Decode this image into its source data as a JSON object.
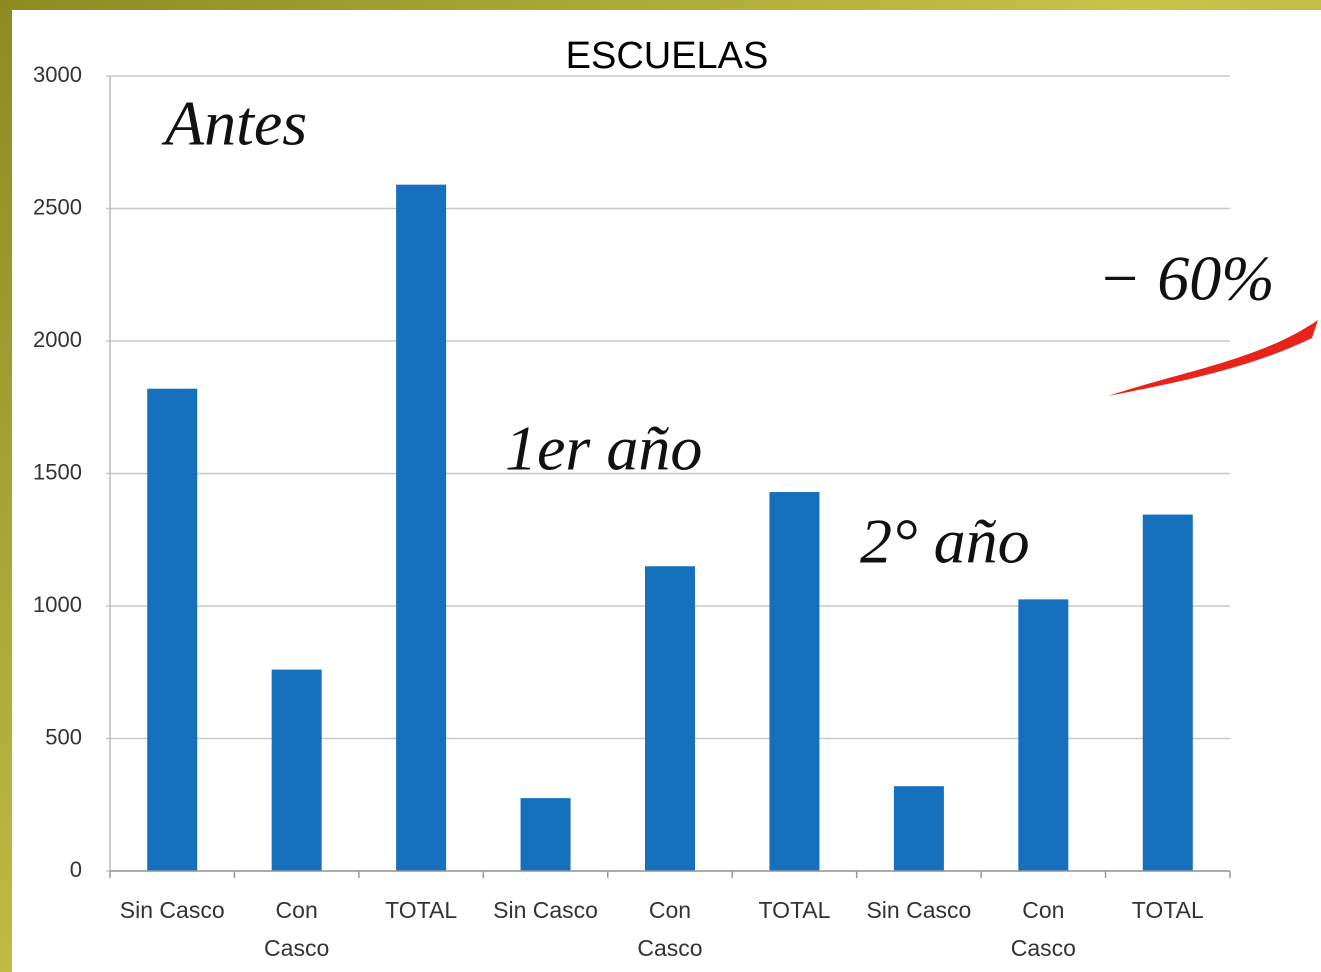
{
  "chart_data": {
    "type": "bar",
    "title": "ESCUELAS",
    "categories": [
      "Sin Casco",
      "Con Casco",
      "TOTAL",
      "Sin Casco",
      "Con Casco",
      "TOTAL",
      "Sin Casco",
      "Con Casco",
      "TOTAL"
    ],
    "values": [
      1820,
      760,
      2590,
      275,
      1150,
      1430,
      320,
      1025,
      1345
    ],
    "color": "#1570bd",
    "ylim": [
      0,
      3000
    ],
    "yticks": [
      0,
      500,
      1000,
      1500,
      2000,
      2500,
      3000
    ],
    "grid": true,
    "annotations": [
      "Antes",
      "1er año",
      "2° año",
      "− 60%"
    ]
  }
}
